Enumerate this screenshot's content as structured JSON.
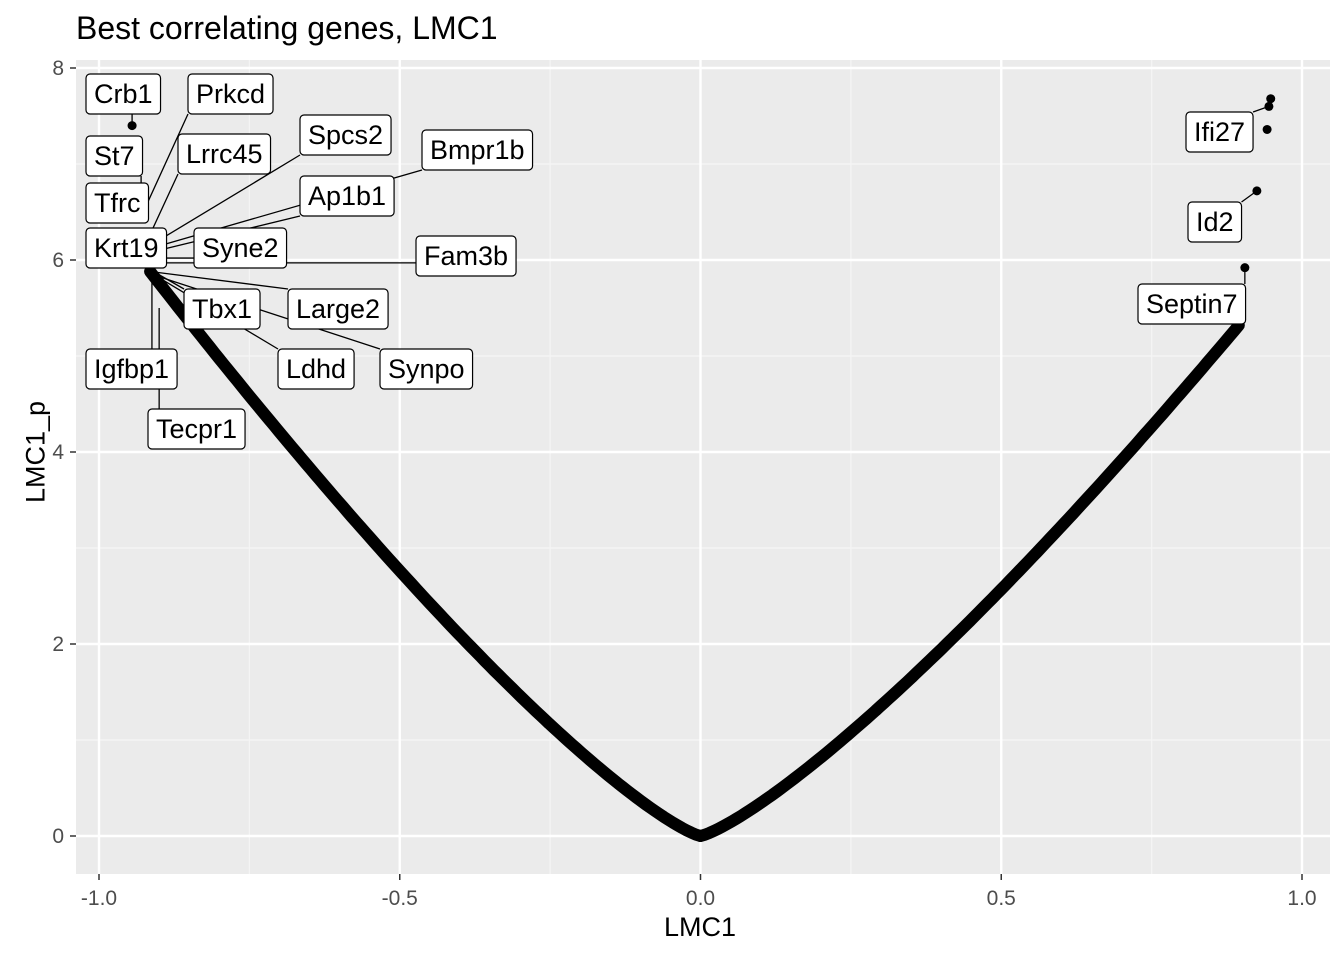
{
  "chart_data": {
    "type": "scatter",
    "title": "Best correlating genes, LMC1",
    "xlabel": "LMC1",
    "ylabel": "LMC1_p",
    "xlim": [
      -1.0,
      1.0
    ],
    "ylim": [
      0,
      8
    ],
    "x_ticks": [
      "-1.0",
      "-0.5",
      "0.0",
      "0.5",
      "1.0"
    ],
    "y_ticks": [
      "0",
      "2",
      "4",
      "6",
      "8"
    ],
    "grid": true,
    "legend": "none",
    "point_color": "#000000",
    "panel_color": "#ebebeb",
    "curve": {
      "description_of_series": "all genes",
      "x_range": [
        -0.915,
        0.895
      ],
      "y_at_x_min": 5.88,
      "y_at_x_max": 5.32
    },
    "points": [
      {
        "x": -0.945,
        "y": 7.4
      },
      {
        "x": -0.93,
        "y": 6.45
      },
      {
        "x": -0.915,
        "y": 6.05
      },
      {
        "x": 0.948,
        "y": 7.68
      },
      {
        "x": 0.945,
        "y": 7.6
      },
      {
        "x": 0.942,
        "y": 7.36
      },
      {
        "x": 0.925,
        "y": 6.72
      },
      {
        "x": 0.905,
        "y": 5.92
      }
    ],
    "labels": [
      {
        "text": "Crb1",
        "x": -0.945,
        "y": 7.4
      },
      {
        "text": "Prkcd",
        "x": -0.93,
        "y": 6.45
      },
      {
        "text": "St7",
        "x": -0.93,
        "y": 6.6
      },
      {
        "text": "Lrrc45",
        "x": -0.92,
        "y": 6.2
      },
      {
        "text": "Spcs2",
        "x": -0.915,
        "y": 6.15
      },
      {
        "text": "Bmpr1b",
        "x": -0.915,
        "y": 6.12
      },
      {
        "text": "Tfrc",
        "x": -0.93,
        "y": 6.45
      },
      {
        "text": "Ap1b1",
        "x": -0.915,
        "y": 6.08
      },
      {
        "text": "Krt19",
        "x": -0.915,
        "y": 6.05
      },
      {
        "text": "Syne2",
        "x": -0.915,
        "y": 6.02
      },
      {
        "text": "Fam3b",
        "x": -0.915,
        "y": 5.97
      },
      {
        "text": "Tbx1",
        "x": -0.915,
        "y": 5.9
      },
      {
        "text": "Large2",
        "x": -0.915,
        "y": 5.88
      },
      {
        "text": "Ldhd",
        "x": -0.912,
        "y": 5.86
      },
      {
        "text": "Synpo",
        "x": -0.912,
        "y": 5.85
      },
      {
        "text": "Igfbp1",
        "x": -0.912,
        "y": 5.83
      },
      {
        "text": "Tecpr1",
        "x": -0.9,
        "y": 5.5
      },
      {
        "text": "Ifi27",
        "x": 0.945,
        "y": 7.6
      },
      {
        "text": "Id2",
        "x": 0.925,
        "y": 6.72
      },
      {
        "text": "Septin7",
        "x": 0.905,
        "y": 5.92
      }
    ]
  }
}
